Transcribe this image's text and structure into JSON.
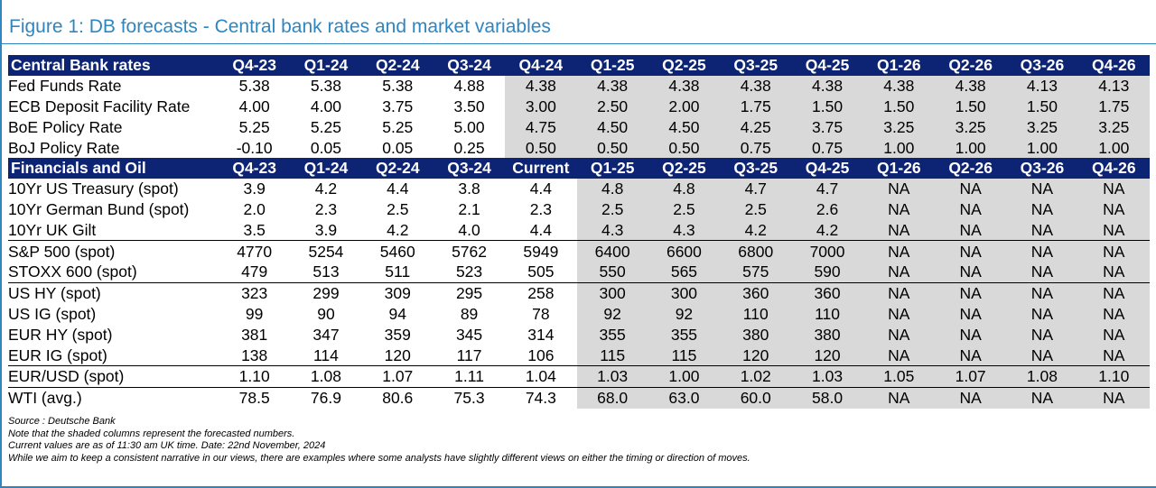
{
  "title": "Figure 1: DB forecasts - Central bank rates and market variables",
  "sections": [
    {
      "heading": "Central Bank rates",
      "columns": [
        "Q4-23",
        "Q1-24",
        "Q2-24",
        "Q3-24",
        "Q4-24",
        "Q1-25",
        "Q2-25",
        "Q3-25",
        "Q4-25",
        "Q1-26",
        "Q2-26",
        "Q3-26",
        "Q4-26"
      ],
      "rows": [
        {
          "label": "Fed Funds Rate",
          "values": [
            "5.38",
            "5.38",
            "5.38",
            "4.88",
            "4.38",
            "4.38",
            "4.38",
            "4.38",
            "4.38",
            "4.38",
            "4.38",
            "4.13",
            "4.13"
          ]
        },
        {
          "label": "ECB Deposit Facility Rate",
          "values": [
            "4.00",
            "4.00",
            "3.75",
            "3.50",
            "3.00",
            "2.50",
            "2.00",
            "1.75",
            "1.50",
            "1.50",
            "1.50",
            "1.50",
            "1.75"
          ]
        },
        {
          "label": "BoE Policy Rate",
          "values": [
            "5.25",
            "5.25",
            "5.25",
            "5.00",
            "4.75",
            "4.50",
            "4.50",
            "4.25",
            "3.75",
            "3.25",
            "3.25",
            "3.25",
            "3.25"
          ]
        },
        {
          "label": "BoJ Policy Rate",
          "values": [
            "-0.10",
            "0.05",
            "0.05",
            "0.25",
            "0.50",
            "0.50",
            "0.50",
            "0.75",
            "0.75",
            "1.00",
            "1.00",
            "1.00",
            "1.00"
          ]
        }
      ]
    },
    {
      "heading": "Financials and Oil",
      "columns": [
        "Q4-23",
        "Q1-24",
        "Q2-24",
        "Q3-24",
        "Current",
        "Q1-25",
        "Q2-25",
        "Q3-25",
        "Q4-25",
        "Q1-26",
        "Q2-26",
        "Q3-26",
        "Q4-26"
      ],
      "rows": [
        {
          "label": "10Yr US Treasury (spot)",
          "values": [
            "3.9",
            "4.2",
            "4.4",
            "3.8",
            "4.4",
            "4.8",
            "4.8",
            "4.7",
            "4.7",
            "NA",
            "NA",
            "NA",
            "NA"
          ]
        },
        {
          "label": "10Yr German Bund (spot)",
          "values": [
            "2.0",
            "2.3",
            "2.5",
            "2.1",
            "2.3",
            "2.5",
            "2.5",
            "2.5",
            "2.6",
            "NA",
            "NA",
            "NA",
            "NA"
          ]
        },
        {
          "label": "10Yr UK Gilt",
          "values": [
            "3.5",
            "3.9",
            "4.2",
            "4.0",
            "4.4",
            "4.3",
            "4.3",
            "4.2",
            "4.2",
            "NA",
            "NA",
            "NA",
            "NA"
          ]
        },
        {
          "label": "S&P 500 (spot)",
          "values": [
            "4770",
            "5254",
            "5460",
            "5762",
            "5949",
            "6400",
            "6600",
            "6800",
            "7000",
            "NA",
            "NA",
            "NA",
            "NA"
          ],
          "separator": true
        },
        {
          "label": "STOXX 600 (spot)",
          "values": [
            "479",
            "513",
            "511",
            "523",
            "505",
            "550",
            "565",
            "575",
            "590",
            "NA",
            "NA",
            "NA",
            "NA"
          ]
        },
        {
          "label": "US HY (spot)",
          "values": [
            "323",
            "299",
            "309",
            "295",
            "258",
            "300",
            "300",
            "360",
            "360",
            "NA",
            "NA",
            "NA",
            "NA"
          ],
          "separator": true
        },
        {
          "label": "US IG (spot)",
          "values": [
            "99",
            "90",
            "94",
            "89",
            "78",
            "92",
            "92",
            "110",
            "110",
            "NA",
            "NA",
            "NA",
            "NA"
          ]
        },
        {
          "label": "EUR HY (spot)",
          "values": [
            "381",
            "347",
            "359",
            "345",
            "314",
            "355",
            "355",
            "380",
            "380",
            "NA",
            "NA",
            "NA",
            "NA"
          ]
        },
        {
          "label": "EUR IG (spot)",
          "values": [
            "138",
            "114",
            "120",
            "117",
            "106",
            "115",
            "115",
            "120",
            "120",
            "NA",
            "NA",
            "NA",
            "NA"
          ]
        },
        {
          "label": "EUR/USD (spot)",
          "values": [
            "1.10",
            "1.08",
            "1.07",
            "1.11",
            "1.04",
            "1.03",
            "1.00",
            "1.02",
            "1.03",
            "1.05",
            "1.07",
            "1.08",
            "1.10"
          ],
          "separator": true
        },
        {
          "label": "WTI (avg.)",
          "values": [
            "78.5",
            "76.9",
            "80.6",
            "75.3",
            "74.3",
            "68.0",
            "63.0",
            "60.0",
            "58.0",
            "NA",
            "NA",
            "NA",
            "NA"
          ],
          "separator": true
        }
      ]
    }
  ],
  "notes": [
    "Source : Deutsche Bank",
    "Note that the shaded columns represent the forecasted numbers.",
    "Current values are as of 11:30 am UK time. Date: 22nd November, 2024",
    "While we aim to keep a consistent narrative in our views, there are examples where some analysts have slightly different views on either the timing or direction of moves."
  ],
  "colors": {
    "accent": "#2e86c1",
    "header_bg": "#0c2473",
    "shade": "#d9d9d9"
  }
}
